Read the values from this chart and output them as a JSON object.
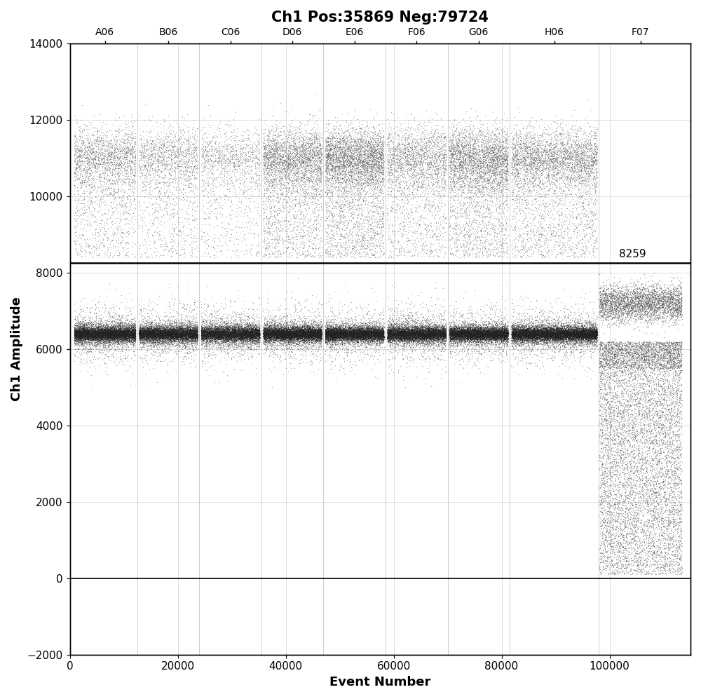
{
  "title": "Ch1 Pos:35869 Neg:79724",
  "xlabel": "Event Number",
  "ylabel": "Ch1 Amplitude",
  "xlim": [
    0,
    115000
  ],
  "ylim": [
    -2000,
    14000
  ],
  "threshold_y": 8259,
  "threshold_label": "8259",
  "xticks": [
    0,
    20000,
    40000,
    60000,
    80000,
    100000
  ],
  "yticks": [
    -2000,
    0,
    2000,
    4000,
    6000,
    8000,
    10000,
    12000,
    14000
  ],
  "sample_labels": [
    "A06",
    "B06",
    "C06",
    "D06",
    "E06",
    "F06",
    "G06",
    "H06",
    "F07"
  ],
  "sample_boundaries": [
    500,
    12500,
    24000,
    35500,
    47000,
    58500,
    70000,
    81500,
    98000,
    113500
  ],
  "background_color": "#ffffff",
  "grid_color": "#cccccc",
  "line_color": "#000000",
  "title_fontsize": 15,
  "axis_label_fontsize": 13,
  "tick_fontsize": 11,
  "sample_label_fontsize": 10
}
